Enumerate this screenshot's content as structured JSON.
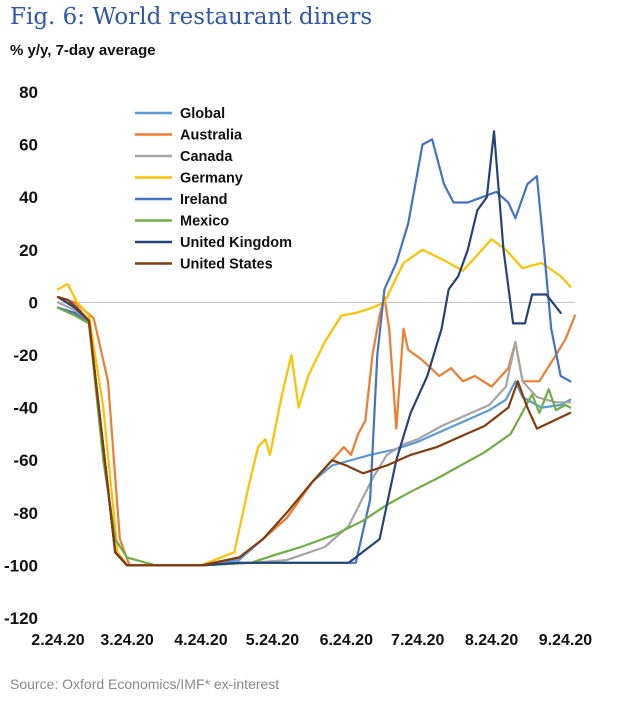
{
  "header": {
    "title": "Fig. 6: World restaurant diners",
    "subtitle": "% y/y, 7-day average"
  },
  "footer": {
    "source": "Source: Oxford Economics/IMF* ex-interest"
  },
  "chart_data": {
    "type": "line",
    "title": "Fig. 6: World restaurant diners",
    "subtitle": "% y/y, 7-day average",
    "ylim": [
      -120,
      80
    ],
    "yticks": [
      80,
      60,
      40,
      20,
      0,
      -20,
      -40,
      -60,
      -80,
      -100,
      -120
    ],
    "xlim": [
      "2020-02-24",
      "2020-09-28"
    ],
    "xticks": [
      {
        "date": "2020-02-24",
        "label": "2.24.20"
      },
      {
        "date": "2020-03-24",
        "label": "3.24.20"
      },
      {
        "date": "2020-04-24",
        "label": "4.24.20"
      },
      {
        "date": "2020-05-24",
        "label": "5.24.20"
      },
      {
        "date": "2020-06-24",
        "label": "6.24.20"
      },
      {
        "date": "2020-07-24",
        "label": "7.24.20"
      },
      {
        "date": "2020-08-24",
        "label": "8.24.20"
      },
      {
        "date": "2020-09-24",
        "label": "9.24.20"
      }
    ],
    "grid": false,
    "legend": "top-left",
    "series": [
      {
        "name": "Global",
        "color": "#5b9bd5",
        "points": [
          [
            "2020-02-24",
            -2
          ],
          [
            "2020-03-02",
            -4
          ],
          [
            "2020-03-08",
            -8
          ],
          [
            "2020-03-14",
            -55
          ],
          [
            "2020-03-19",
            -95
          ],
          [
            "2020-03-24",
            -100
          ],
          [
            "2020-04-24",
            -100
          ],
          [
            "2020-05-10",
            -98
          ],
          [
            "2020-05-20",
            -90
          ],
          [
            "2020-05-30",
            -82
          ],
          [
            "2020-06-10",
            -68
          ],
          [
            "2020-06-18",
            -62
          ],
          [
            "2020-06-26",
            -60
          ],
          [
            "2020-07-04",
            -58
          ],
          [
            "2020-07-14",
            -56
          ],
          [
            "2020-07-24",
            -53
          ],
          [
            "2020-08-03",
            -49
          ],
          [
            "2020-08-13",
            -45
          ],
          [
            "2020-08-23",
            -41
          ],
          [
            "2020-08-30",
            -37
          ],
          [
            "2020-09-03",
            -30
          ],
          [
            "2020-09-06",
            -36
          ],
          [
            "2020-09-14",
            -40
          ],
          [
            "2020-09-22",
            -39
          ],
          [
            "2020-09-26",
            -37
          ]
        ]
      },
      {
        "name": "Australia",
        "color": "#ed7d31",
        "points": [
          [
            "2020-02-24",
            2
          ],
          [
            "2020-03-02",
            0
          ],
          [
            "2020-03-10",
            -6
          ],
          [
            "2020-03-16",
            -30
          ],
          [
            "2020-03-21",
            -90
          ],
          [
            "2020-03-25",
            -100
          ],
          [
            "2020-04-24",
            -100
          ],
          [
            "2020-05-10",
            -97
          ],
          [
            "2020-05-20",
            -90
          ],
          [
            "2020-05-30",
            -82
          ],
          [
            "2020-06-10",
            -68
          ],
          [
            "2020-06-18",
            -60
          ],
          [
            "2020-06-23",
            -55
          ],
          [
            "2020-06-26",
            -58
          ],
          [
            "2020-06-29",
            -50
          ],
          [
            "2020-07-02",
            -45
          ],
          [
            "2020-07-05",
            -20
          ],
          [
            "2020-07-08",
            -5
          ],
          [
            "2020-07-10",
            2
          ],
          [
            "2020-07-12",
            -10
          ],
          [
            "2020-07-15",
            -48
          ],
          [
            "2020-07-18",
            -10
          ],
          [
            "2020-07-20",
            -18
          ],
          [
            "2020-07-26",
            -22
          ],
          [
            "2020-08-02",
            -28
          ],
          [
            "2020-08-07",
            -25
          ],
          [
            "2020-08-12",
            -30
          ],
          [
            "2020-08-17",
            -28
          ],
          [
            "2020-08-24",
            -32
          ],
          [
            "2020-08-31",
            -25
          ],
          [
            "2020-09-03",
            -15
          ],
          [
            "2020-09-06",
            -30
          ],
          [
            "2020-09-13",
            -30
          ],
          [
            "2020-09-20",
            -20
          ],
          [
            "2020-09-24",
            -14
          ],
          [
            "2020-09-28",
            -5
          ]
        ]
      },
      {
        "name": "Canada",
        "color": "#a5a5a5",
        "points": [
          [
            "2020-02-24",
            0
          ],
          [
            "2020-03-02",
            -3
          ],
          [
            "2020-03-08",
            -7
          ],
          [
            "2020-03-14",
            -55
          ],
          [
            "2020-03-19",
            -95
          ],
          [
            "2020-03-24",
            -100
          ],
          [
            "2020-04-24",
            -100
          ],
          [
            "2020-05-15",
            -99
          ],
          [
            "2020-05-30",
            -98
          ],
          [
            "2020-06-15",
            -93
          ],
          [
            "2020-06-25",
            -85
          ],
          [
            "2020-07-05",
            -67
          ],
          [
            "2020-07-11",
            -58
          ],
          [
            "2020-07-18",
            -54
          ],
          [
            "2020-07-24",
            -52
          ],
          [
            "2020-08-03",
            -47
          ],
          [
            "2020-08-13",
            -43
          ],
          [
            "2020-08-23",
            -39
          ],
          [
            "2020-08-30",
            -32
          ],
          [
            "2020-09-03",
            -15
          ],
          [
            "2020-09-06",
            -30
          ],
          [
            "2020-09-12",
            -36
          ],
          [
            "2020-09-20",
            -38
          ],
          [
            "2020-09-26",
            -38
          ]
        ]
      },
      {
        "name": "Germany",
        "color": "#ffc000",
        "points": [
          [
            "2020-02-24",
            5
          ],
          [
            "2020-02-28",
            7
          ],
          [
            "2020-03-03",
            0
          ],
          [
            "2020-03-08",
            -5
          ],
          [
            "2020-03-14",
            -40
          ],
          [
            "2020-03-20",
            -95
          ],
          [
            "2020-03-24",
            -100
          ],
          [
            "2020-04-24",
            -100
          ],
          [
            "2020-05-08",
            -95
          ],
          [
            "2020-05-14",
            -70
          ],
          [
            "2020-05-18",
            -55
          ],
          [
            "2020-05-21",
            -52
          ],
          [
            "2020-05-23",
            -58
          ],
          [
            "2020-05-28",
            -35
          ],
          [
            "2020-06-01",
            -20
          ],
          [
            "2020-06-04",
            -40
          ],
          [
            "2020-06-08",
            -28
          ],
          [
            "2020-06-15",
            -15
          ],
          [
            "2020-06-22",
            -5
          ],
          [
            "2020-06-28",
            -4
          ],
          [
            "2020-07-05",
            -2
          ],
          [
            "2020-07-10",
            0
          ],
          [
            "2020-07-18",
            15
          ],
          [
            "2020-07-26",
            20
          ],
          [
            "2020-08-04",
            16
          ],
          [
            "2020-08-12",
            12
          ],
          [
            "2020-08-20",
            20
          ],
          [
            "2020-08-24",
            24
          ],
          [
            "2020-08-30",
            20
          ],
          [
            "2020-09-06",
            13
          ],
          [
            "2020-09-14",
            15
          ],
          [
            "2020-09-22",
            10
          ],
          [
            "2020-09-26",
            6
          ]
        ]
      },
      {
        "name": "Ireland",
        "color": "#4472c4",
        "points": [
          [
            "2020-02-24",
            -2
          ],
          [
            "2020-03-02",
            -4
          ],
          [
            "2020-03-08",
            -8
          ],
          [
            "2020-03-14",
            -55
          ],
          [
            "2020-03-19",
            -95
          ],
          [
            "2020-03-24",
            -100
          ],
          [
            "2020-04-24",
            -100
          ],
          [
            "2020-05-10",
            -99
          ],
          [
            "2020-06-15",
            -99
          ],
          [
            "2020-06-28",
            -99
          ],
          [
            "2020-07-04",
            -75
          ],
          [
            "2020-07-07",
            -20
          ],
          [
            "2020-07-10",
            5
          ],
          [
            "2020-07-15",
            15
          ],
          [
            "2020-07-20",
            30
          ],
          [
            "2020-07-26",
            60
          ],
          [
            "2020-07-30",
            62
          ],
          [
            "2020-08-04",
            45
          ],
          [
            "2020-08-08",
            38
          ],
          [
            "2020-08-14",
            38
          ],
          [
            "2020-08-20",
            40
          ],
          [
            "2020-08-26",
            42
          ],
          [
            "2020-08-31",
            38
          ],
          [
            "2020-09-03",
            32
          ],
          [
            "2020-09-08",
            45
          ],
          [
            "2020-09-12",
            48
          ],
          [
            "2020-09-15",
            20
          ],
          [
            "2020-09-18",
            -10
          ],
          [
            "2020-09-22",
            -28
          ],
          [
            "2020-09-26",
            -30
          ]
        ]
      },
      {
        "name": "Mexico",
        "color": "#70ad47",
        "points": [
          [
            "2020-02-24",
            -2
          ],
          [
            "2020-03-02",
            -5
          ],
          [
            "2020-03-08",
            -8
          ],
          [
            "2020-03-14",
            -60
          ],
          [
            "2020-03-19",
            -90
          ],
          [
            "2020-03-24",
            -97
          ],
          [
            "2020-04-05",
            -100
          ],
          [
            "2020-04-24",
            -100
          ],
          [
            "2020-05-15",
            -99
          ],
          [
            "2020-05-25",
            -96
          ],
          [
            "2020-06-05",
            -93
          ],
          [
            "2020-06-20",
            -88
          ],
          [
            "2020-07-01",
            -83
          ],
          [
            "2020-07-11",
            -77
          ],
          [
            "2020-07-21",
            -72
          ],
          [
            "2020-08-01",
            -67
          ],
          [
            "2020-08-11",
            -62
          ],
          [
            "2020-08-21",
            -57
          ],
          [
            "2020-09-01",
            -50
          ],
          [
            "2020-09-07",
            -40
          ],
          [
            "2020-09-10",
            -35
          ],
          [
            "2020-09-13",
            -42
          ],
          [
            "2020-09-17",
            -33
          ],
          [
            "2020-09-20",
            -41
          ],
          [
            "2020-09-24",
            -39
          ],
          [
            "2020-09-26",
            -40
          ]
        ]
      },
      {
        "name": "United Kingdom",
        "color": "#264478",
        "points": [
          [
            "2020-02-24",
            2
          ],
          [
            "2020-03-02",
            -2
          ],
          [
            "2020-03-08",
            -7
          ],
          [
            "2020-03-14",
            -55
          ],
          [
            "2020-03-19",
            -95
          ],
          [
            "2020-03-24",
            -100
          ],
          [
            "2020-04-24",
            -100
          ],
          [
            "2020-05-10",
            -99
          ],
          [
            "2020-06-10",
            -99
          ],
          [
            "2020-06-25",
            -99
          ],
          [
            "2020-07-08",
            -90
          ],
          [
            "2020-07-15",
            -60
          ],
          [
            "2020-07-21",
            -42
          ],
          [
            "2020-07-28",
            -28
          ],
          [
            "2020-08-03",
            -10
          ],
          [
            "2020-08-06",
            5
          ],
          [
            "2020-08-10",
            10
          ],
          [
            "2020-08-14",
            20
          ],
          [
            "2020-08-18",
            35
          ],
          [
            "2020-08-22",
            40
          ],
          [
            "2020-08-25",
            65
          ],
          [
            "2020-08-29",
            20
          ],
          [
            "2020-09-02",
            -8
          ],
          [
            "2020-09-07",
            -8
          ],
          [
            "2020-09-10",
            3
          ],
          [
            "2020-09-16",
            3
          ],
          [
            "2020-09-22",
            -4
          ]
        ]
      },
      {
        "name": "United States",
        "color": "#843c0c",
        "points": [
          [
            "2020-02-24",
            2
          ],
          [
            "2020-02-28",
            1
          ],
          [
            "2020-03-03",
            -2
          ],
          [
            "2020-03-08",
            -7
          ],
          [
            "2020-03-14",
            -55
          ],
          [
            "2020-03-19",
            -95
          ],
          [
            "2020-03-24",
            -100
          ],
          [
            "2020-04-24",
            -100
          ],
          [
            "2020-05-10",
            -97
          ],
          [
            "2020-05-20",
            -90
          ],
          [
            "2020-05-30",
            -80
          ],
          [
            "2020-06-10",
            -68
          ],
          [
            "2020-06-18",
            -60
          ],
          [
            "2020-06-24",
            -62
          ],
          [
            "2020-07-01",
            -65
          ],
          [
            "2020-07-11",
            -62
          ],
          [
            "2020-07-21",
            -58
          ],
          [
            "2020-08-01",
            -55
          ],
          [
            "2020-08-11",
            -51
          ],
          [
            "2020-08-21",
            -47
          ],
          [
            "2020-08-31",
            -40
          ],
          [
            "2020-09-04",
            -30
          ],
          [
            "2020-09-08",
            -40
          ],
          [
            "2020-09-12",
            -48
          ],
          [
            "2020-09-19",
            -45
          ],
          [
            "2020-09-26",
            -42
          ]
        ]
      }
    ]
  }
}
